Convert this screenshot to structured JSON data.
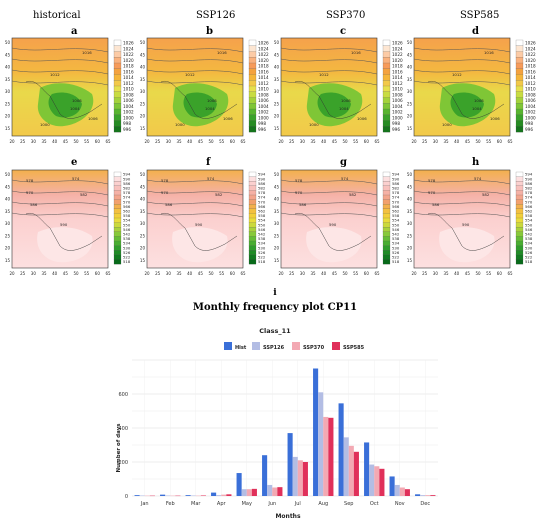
{
  "columns": [
    "historical",
    "SSP126",
    "SSP370",
    "SSP585"
  ],
  "row1_letters": [
    "a",
    "b",
    "c",
    "d"
  ],
  "row2_letters": [
    "e",
    "f",
    "g",
    "h"
  ],
  "letter_i": "i",
  "figure_title": "Monthly frequency plot CP11",
  "map_axes": {
    "x_ticks": [
      "20",
      "25",
      "30",
      "35",
      "40",
      "45",
      "50",
      "55",
      "60",
      "65"
    ],
    "y_ticks": [
      "15",
      "20",
      "25",
      "30",
      "35",
      "40",
      "45",
      "50"
    ]
  },
  "slp_colorbar": {
    "labels": [
      "1026",
      "1024",
      "1022",
      "1020",
      "1018",
      "1016",
      "1014",
      "1012",
      "1010",
      "1008",
      "1006",
      "1004",
      "1002",
      "1000",
      "998",
      "996"
    ],
    "colors": [
      "#ffffff",
      "#fde6d2",
      "#fccba6",
      "#fab27e",
      "#f79b5a",
      "#f4a23f",
      "#f5b53a",
      "#f2c94a",
      "#e7e04d",
      "#c8dc42",
      "#a4d23b",
      "#7fc636",
      "#58b52f",
      "#3aa22a",
      "#268b23",
      "#15741c"
    ]
  },
  "gph_colorbar": {
    "labels": [
      "594",
      "590",
      "586",
      "582",
      "578",
      "574",
      "570",
      "566",
      "562",
      "558",
      "554",
      "550",
      "546",
      "542",
      "538",
      "534",
      "530",
      "526",
      "522",
      "518"
    ],
    "colors": [
      "#ffffff",
      "#fde0e0",
      "#fbd0cf",
      "#f8c1bd",
      "#f5b1a6",
      "#f3a58d",
      "#f2a06d",
      "#f3b04d",
      "#f3c040",
      "#f2cf3a",
      "#e9dc3c",
      "#cbd93d",
      "#aad23c",
      "#88c93a",
      "#66bd36",
      "#49ae31",
      "#309d2c",
      "#1f8c26",
      "#127a20",
      "#086a1a"
    ]
  },
  "panel_labels_slp": [
    "1016",
    "1012",
    "1008",
    "1004",
    "1000",
    "1006"
  ],
  "panel_labels_gph": [
    "578",
    "574",
    "570",
    "582",
    "586",
    "590"
  ],
  "chart_data": {
    "type": "bar",
    "title": "Class_11",
    "xlabel": "Months",
    "ylabel": "Number of days",
    "categories": [
      "Jan",
      "Feb",
      "Mar",
      "Apr",
      "May",
      "Jun",
      "Jul",
      "Aug",
      "Sep",
      "Oct",
      "Nov",
      "Dec"
    ],
    "ylim": [
      0,
      800
    ],
    "yticks": [
      0,
      200,
      400,
      600
    ],
    "legend_position": "top",
    "series": [
      {
        "name": "Hist",
        "color": "#3a6fd8",
        "values": [
          5,
          8,
          5,
          20,
          135,
          240,
          370,
          750,
          545,
          315,
          115,
          10
        ]
      },
      {
        "name": "SSP126",
        "color": "#b3bde4",
        "values": [
          3,
          3,
          3,
          5,
          40,
          65,
          230,
          610,
          345,
          185,
          65,
          5
        ]
      },
      {
        "name": "SSP370",
        "color": "#f3a9b3",
        "values": [
          2,
          2,
          2,
          8,
          40,
          50,
          210,
          465,
          295,
          175,
          50,
          5
        ]
      },
      {
        "name": "SSP585",
        "color": "#e0305a",
        "values": [
          2,
          2,
          3,
          10,
          42,
          52,
          200,
          460,
          260,
          160,
          40,
          5
        ]
      }
    ],
    "grid": true
  }
}
